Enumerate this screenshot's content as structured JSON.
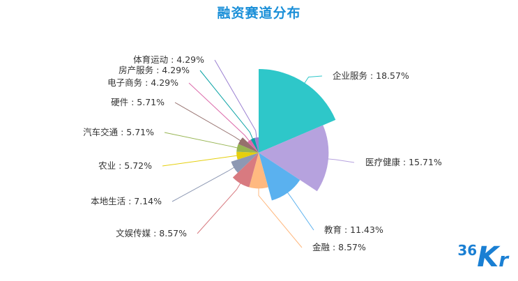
{
  "colors": {
    "title": "#1a8fd8",
    "logo": "#1a7fd3"
  },
  "logo": {
    "prefix": "36",
    "k": "K",
    "r": "r"
  },
  "chart_data": {
    "type": "pie",
    "variant": "rose",
    "title": "融资赛道分布",
    "slices": [
      {
        "label": "企业服务",
        "value": 18.57,
        "display": "企业服务 : 18.57%",
        "color": "#2ec7c9"
      },
      {
        "label": "医疗健康",
        "value": 15.71,
        "display": "医疗健康 : 15.71%",
        "color": "#b6a2de"
      },
      {
        "label": "教育",
        "value": 11.43,
        "display": "教育 : 11.43%",
        "color": "#5ab1ef"
      },
      {
        "label": "金融",
        "value": 8.57,
        "display": "金融 : 8.57%",
        "color": "#ffb980"
      },
      {
        "label": "文娱传媒",
        "value": 8.57,
        "display": "文娱传媒 : 8.57%",
        "color": "#d87a80"
      },
      {
        "label": "本地生活",
        "value": 7.14,
        "display": "本地生活 : 7.14%",
        "color": "#8d98b3"
      },
      {
        "label": "农业",
        "value": 5.72,
        "display": "农业 : 5.72%",
        "color": "#e5cf0d"
      },
      {
        "label": "汽车交通",
        "value": 5.71,
        "display": "汽车交通 : 5.71%",
        "color": "#97b552"
      },
      {
        "label": "硬件",
        "value": 5.71,
        "display": "硬件 : 5.71%",
        "color": "#95706d"
      },
      {
        "label": "电子商务",
        "value": 4.29,
        "display": "电子商务 : 4.29%",
        "color": "#dc69aa"
      },
      {
        "label": "房产服务",
        "value": 4.29,
        "display": "房产服务 : 4.29%",
        "color": "#07a2a4"
      },
      {
        "label": "体育运动",
        "value": 4.29,
        "display": "体育运动 : 4.29%",
        "color": "#9a7fd1"
      }
    ]
  }
}
